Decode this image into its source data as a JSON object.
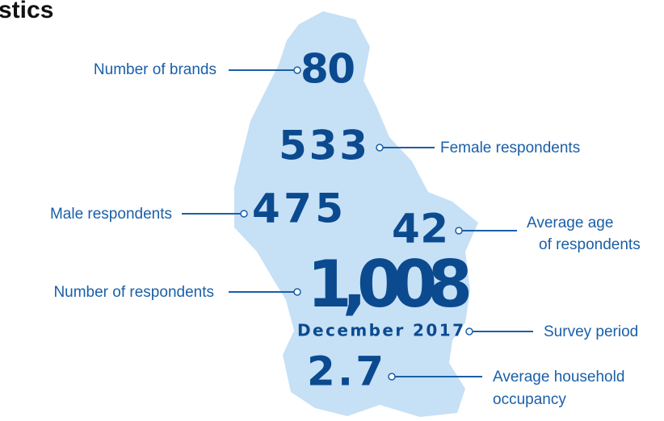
{
  "header": {
    "title": "stics"
  },
  "items": [
    {
      "value": "80",
      "label": [
        "Number of brands"
      ]
    },
    {
      "value": "533",
      "label": [
        "Female respondents"
      ]
    },
    {
      "value": "475",
      "label": [
        "Male respondents"
      ]
    },
    {
      "value": "42",
      "label": [
        "Average age",
        "of respondents"
      ]
    },
    {
      "value": "1,008",
      "label": [
        "Number of respondents"
      ]
    },
    {
      "value": "December 2017",
      "label": [
        "Survey period"
      ]
    },
    {
      "value": "2.7",
      "label": [
        "Average household",
        "occupancy"
      ]
    }
  ]
}
